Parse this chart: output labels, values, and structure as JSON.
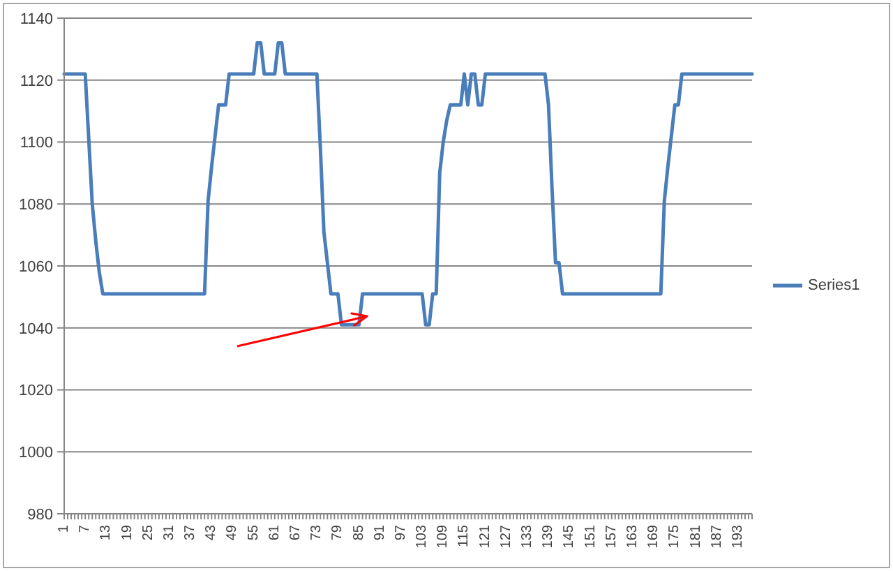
{
  "chart_data": {
    "type": "line",
    "categories": [
      "1",
      null,
      null,
      null,
      null,
      null,
      "7",
      null,
      null,
      null,
      null,
      null,
      "13",
      null,
      null,
      null,
      null,
      null,
      "19",
      null,
      null,
      null,
      null,
      null,
      "25",
      null,
      null,
      null,
      null,
      null,
      "31",
      null,
      null,
      null,
      null,
      null,
      "37",
      null,
      null,
      null,
      null,
      null,
      "43",
      null,
      null,
      null,
      null,
      null,
      "49",
      null,
      null,
      null,
      null,
      null,
      "55",
      null,
      null,
      null,
      null,
      null,
      "61",
      null,
      null,
      null,
      null,
      null,
      "67",
      null,
      null,
      null,
      null,
      null,
      "73",
      null,
      null,
      null,
      null,
      null,
      "79",
      null,
      null,
      null,
      null,
      null,
      "85",
      null,
      null,
      null,
      null,
      null,
      "91",
      null,
      null,
      null,
      null,
      null,
      "97",
      null,
      null,
      null,
      null,
      null,
      "103",
      null,
      null,
      null,
      null,
      null,
      "109",
      null,
      null,
      null,
      null,
      null,
      "115",
      null,
      null,
      null,
      null,
      null,
      "121",
      null,
      null,
      null,
      null,
      null,
      "127",
      null,
      null,
      null,
      null,
      null,
      "133",
      null,
      null,
      null,
      null,
      null,
      "139",
      null,
      null,
      null,
      null,
      null,
      "145",
      null,
      null,
      null,
      null,
      null,
      "151",
      null,
      null,
      null,
      null,
      null,
      "157",
      null,
      null,
      null,
      null,
      null,
      "163",
      null,
      null,
      null,
      null,
      null,
      "169",
      null,
      null,
      null,
      null,
      null,
      "175",
      null,
      null,
      null,
      null,
      null,
      "181",
      null,
      null,
      null,
      null,
      null,
      "187",
      null,
      null,
      null,
      null,
      null,
      "193",
      null,
      null,
      null,
      null
    ],
    "series": [
      {
        "name": "Series1",
        "color": "#4a7ebb",
        "values": [
          1122,
          1122,
          1122,
          1122,
          1122,
          1122,
          1122,
          1101,
          1080,
          1068,
          1058,
          1051,
          1051,
          1051,
          1051,
          1051,
          1051,
          1051,
          1051,
          1051,
          1051,
          1051,
          1051,
          1051,
          1051,
          1051,
          1051,
          1051,
          1051,
          1051,
          1051,
          1051,
          1051,
          1051,
          1051,
          1051,
          1051,
          1051,
          1051,
          1051,
          1051,
          1081,
          1092,
          1102,
          1112,
          1112,
          1112,
          1122,
          1122,
          1122,
          1122,
          1122,
          1122,
          1122,
          1122,
          1132,
          1132,
          1122,
          1122,
          1122,
          1122,
          1132,
          1132,
          1122,
          1122,
          1122,
          1122,
          1122,
          1122,
          1122,
          1122,
          1122,
          1122,
          1098,
          1071,
          1061,
          1051,
          1051,
          1051,
          1041,
          1041,
          1041,
          1041,
          1041,
          1041,
          1051,
          1051,
          1051,
          1051,
          1051,
          1051,
          1051,
          1051,
          1051,
          1051,
          1051,
          1051,
          1051,
          1051,
          1051,
          1051,
          1051,
          1051,
          1041,
          1041,
          1051,
          1051,
          1090,
          1100,
          1107,
          1112,
          1112,
          1112,
          1112,
          1122,
          1112,
          1122,
          1122,
          1112,
          1112,
          1122,
          1122,
          1122,
          1122,
          1122,
          1122,
          1122,
          1122,
          1122,
          1122,
          1122,
          1122,
          1122,
          1122,
          1122,
          1122,
          1122,
          1122,
          1112,
          1085,
          1061,
          1061,
          1051,
          1051,
          1051,
          1051,
          1051,
          1051,
          1051,
          1051,
          1051,
          1051,
          1051,
          1051,
          1051,
          1051,
          1051,
          1051,
          1051,
          1051,
          1051,
          1051,
          1051,
          1051,
          1051,
          1051,
          1051,
          1051,
          1051,
          1051,
          1051,
          1081,
          1092,
          1102,
          1112,
          1112,
          1122,
          1122,
          1122,
          1122,
          1122,
          1122,
          1122,
          1122,
          1122,
          1122,
          1122,
          1122,
          1122,
          1122,
          1122,
          1122,
          1122,
          1122,
          1122,
          1122,
          1122
        ]
      }
    ],
    "ylim": [
      980,
      1140
    ],
    "yticks": [
      980,
      1000,
      1020,
      1040,
      1060,
      1080,
      1100,
      1120,
      1140
    ],
    "grid": "y",
    "legend": "right",
    "marker": "none",
    "line_style": "solid"
  }
}
